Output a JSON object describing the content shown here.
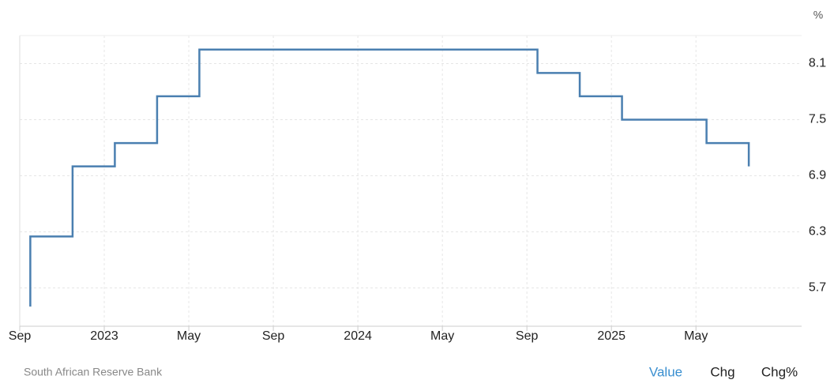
{
  "chart_data": {
    "type": "step",
    "unit": "%",
    "x": [
      "2022-09",
      "2022-09",
      "2022-11",
      "2023-01",
      "2023-03",
      "2023-05",
      "2024-09",
      "2024-11",
      "2025-01",
      "2025-05",
      "2025-07"
    ],
    "series": [
      {
        "name": "Value",
        "color": "#4a7fb0",
        "values": [
          5.5,
          6.25,
          7.0,
          7.25,
          7.75,
          8.25,
          8.0,
          7.75,
          7.5,
          7.25,
          7.0
        ]
      }
    ],
    "xlim": [
      "2022-09",
      "2025-09"
    ],
    "xticks": [
      {
        "value": "2022-09",
        "label": "Sep"
      },
      {
        "value": "2023-01",
        "label": "2023"
      },
      {
        "value": "2023-05",
        "label": "May"
      },
      {
        "value": "2023-09",
        "label": "Sep"
      },
      {
        "value": "2024-01",
        "label": "2024"
      },
      {
        "value": "2024-05",
        "label": "May"
      },
      {
        "value": "2024-09",
        "label": "Sep"
      },
      {
        "value": "2025-01",
        "label": "2025"
      },
      {
        "value": "2025-05",
        "label": "May"
      }
    ],
    "ylim": [
      5.29,
      8.4
    ],
    "yticks": [
      5.7,
      6.3,
      6.9,
      7.5,
      8.1
    ],
    "grid": true
  },
  "source": "South African Reserve Bank",
  "tabs": [
    "Value",
    "Chg",
    "Chg%"
  ]
}
